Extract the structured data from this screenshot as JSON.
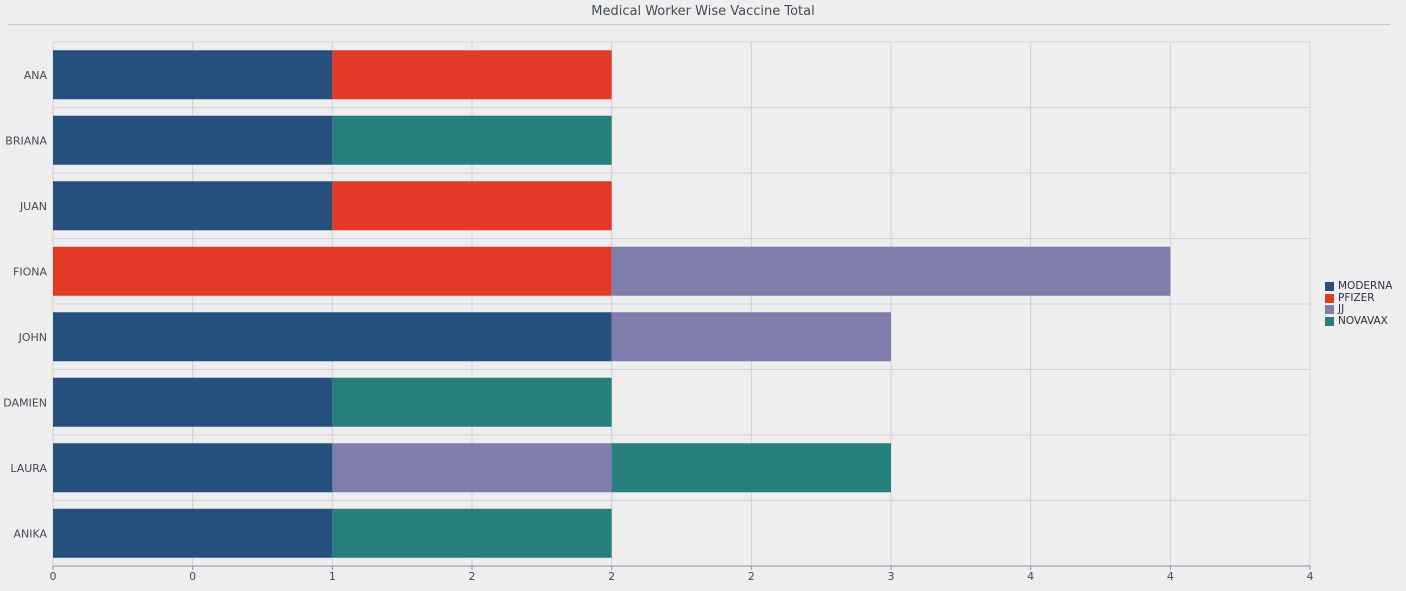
{
  "chart_data": {
    "type": "bar",
    "orientation": "horizontal",
    "stacked": true,
    "title": "Medical Worker Wise Vaccine Total",
    "categories": [
      "ANA",
      "BRIANA",
      "JUAN",
      "FIONA",
      "JOHN",
      "DAMIEN",
      "LAURA",
      "ANIKA"
    ],
    "series": [
      {
        "name": "MODERNA",
        "color": "#26507e",
        "values": [
          1,
          1,
          1,
          0,
          2,
          1,
          1,
          1
        ]
      },
      {
        "name": "PFIZER",
        "color": "#e23a26",
        "values": [
          1,
          0,
          1,
          2,
          0,
          0,
          0,
          0
        ]
      },
      {
        "name": "JJ",
        "color": "#7e7dab",
        "values": [
          0,
          0,
          0,
          2,
          1,
          0,
          1,
          0
        ]
      },
      {
        "name": "NOVAVAX",
        "color": "#267e7d",
        "values": [
          0,
          1,
          0,
          0,
          0,
          1,
          1,
          1
        ]
      }
    ],
    "xlim": [
      0,
      4.5
    ],
    "x_ticks": [
      0,
      0.5,
      1,
      1.5,
      2,
      2.5,
      3,
      3.5,
      4,
      4.5
    ],
    "x_tick_labels": [
      "0",
      "0",
      "1",
      "2",
      "2",
      "2",
      "3",
      "4",
      "4",
      "4"
    ],
    "grid": true,
    "legend_position": "right"
  }
}
